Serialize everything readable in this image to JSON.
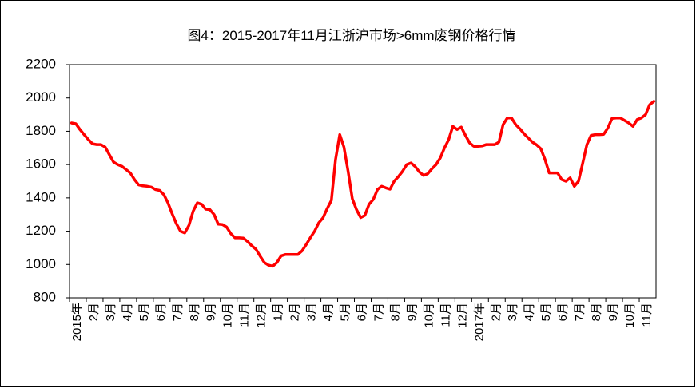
{
  "chart_data": {
    "type": "line",
    "title": "图4：2015-2017年11月江浙沪市场>6mm废钢价格行情",
    "color": "#ff0000",
    "ylim": [
      800,
      2200
    ],
    "yticks": [
      800,
      1000,
      1200,
      1400,
      1600,
      1800,
      2000,
      2200
    ],
    "grid": false,
    "categories": [
      "2015年",
      null,
      null,
      null,
      "2月",
      null,
      null,
      null,
      "3月",
      null,
      null,
      null,
      "4月",
      null,
      null,
      null,
      "5月",
      null,
      null,
      null,
      "6月",
      null,
      null,
      null,
      "7月",
      null,
      null,
      null,
      "8月",
      null,
      null,
      null,
      "9月",
      null,
      null,
      null,
      "10月",
      null,
      null,
      null,
      "11月",
      null,
      null,
      null,
      "12月",
      null,
      null,
      null,
      "1月",
      null,
      null,
      null,
      "2月",
      null,
      null,
      null,
      "3月",
      null,
      null,
      null,
      "4月",
      null,
      null,
      null,
      "5月",
      null,
      null,
      null,
      "6月",
      null,
      null,
      null,
      "7月",
      null,
      null,
      null,
      "8月",
      null,
      null,
      null,
      "9月",
      null,
      null,
      null,
      "10月",
      null,
      null,
      null,
      "11月",
      null,
      null,
      null,
      "12月",
      null,
      null,
      null,
      "2017年",
      null,
      null,
      null,
      "2月",
      null,
      null,
      null,
      "3月",
      null,
      null,
      null,
      "4月",
      null,
      null,
      null,
      "5月",
      null,
      null,
      null,
      "6月",
      null,
      null,
      null,
      "7月",
      null,
      null,
      null,
      "8月",
      null,
      null,
      null,
      "9月",
      null,
      null,
      null,
      "10月",
      null,
      null,
      null,
      "11月",
      null,
      null,
      null
    ],
    "values": [
      1850,
      1845,
      1810,
      1780,
      1750,
      1725,
      1720,
      1720,
      1705,
      1660,
      1615,
      1600,
      1590,
      1570,
      1550,
      1510,
      1478,
      1472,
      1470,
      1465,
      1450,
      1445,
      1420,
      1370,
      1305,
      1245,
      1200,
      1190,
      1235,
      1320,
      1370,
      1362,
      1332,
      1330,
      1300,
      1242,
      1240,
      1225,
      1185,
      1160,
      1160,
      1158,
      1138,
      1112,
      1092,
      1050,
      1012,
      996,
      990,
      1012,
      1052,
      1060,
      1060,
      1060,
      1060,
      1082,
      1120,
      1162,
      1200,
      1250,
      1280,
      1335,
      1385,
      1630,
      1780,
      1705,
      1560,
      1395,
      1330,
      1282,
      1295,
      1362,
      1390,
      1450,
      1470,
      1460,
      1452,
      1500,
      1528,
      1560,
      1600,
      1610,
      1588,
      1556,
      1535,
      1545,
      1575,
      1600,
      1640,
      1700,
      1750,
      1830,
      1810,
      1825,
      1775,
      1730,
      1710,
      1710,
      1712,
      1720,
      1720,
      1720,
      1735,
      1840,
      1880,
      1880,
      1840,
      1815,
      1785,
      1760,
      1735,
      1718,
      1695,
      1630,
      1550,
      1550,
      1550,
      1510,
      1500,
      1520,
      1470,
      1500,
      1610,
      1720,
      1775,
      1780,
      1780,
      1782,
      1820,
      1878,
      1880,
      1880,
      1865,
      1850,
      1830,
      1870,
      1880,
      1900,
      1960,
      1980
    ]
  }
}
